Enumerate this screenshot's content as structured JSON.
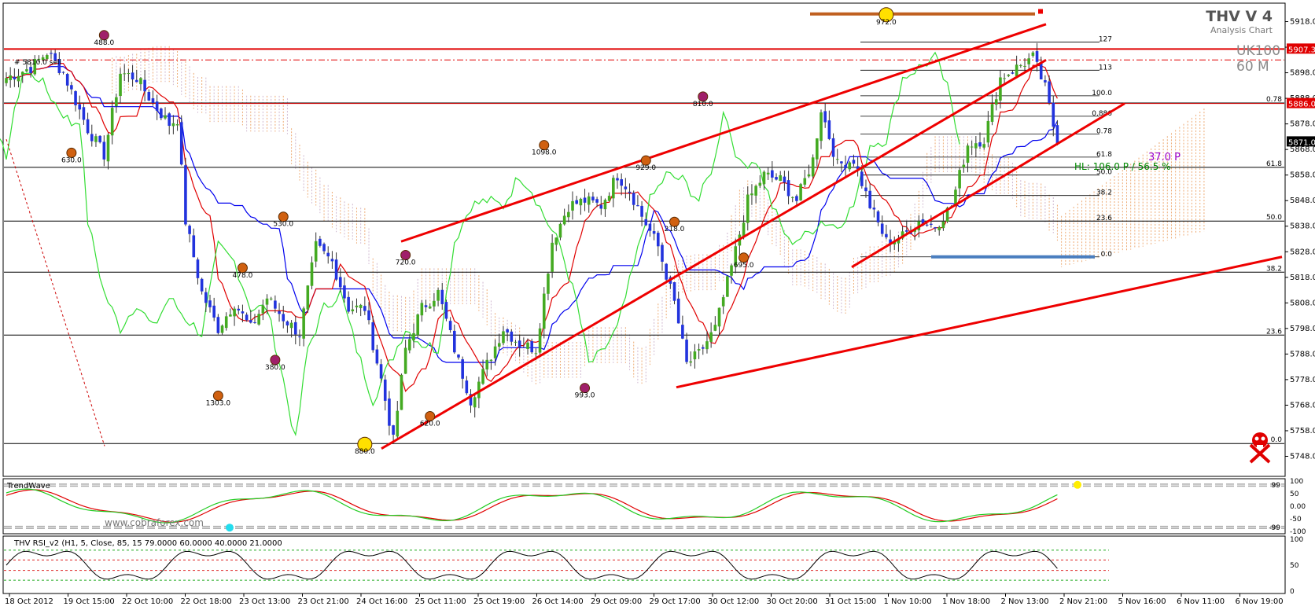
{
  "header": {
    "title": "THV V 4",
    "subtitle": "Analysis Chart",
    "symbol": "UK100",
    "timeframe": "60 M",
    "top_left_label": "# 5810.0 sell"
  },
  "chart_data": [
    {
      "type": "candlestick",
      "name": "main",
      "ylim": [
        5742,
        5924
      ],
      "price_ticks": [
        "5918.0",
        "5908.0",
        "5898.0",
        "5888.0",
        "5878.0",
        "5868.0",
        "5858.0",
        "5848.0",
        "5838.0",
        "5828.0",
        "5818.0",
        "5808.0",
        "5798.0",
        "5788.0",
        "5778.0",
        "5768.0",
        "5758.0",
        "5748.0"
      ],
      "price_tags": [
        {
          "label": "5907.3",
          "price": 5907.3,
          "color": "#e00000"
        },
        {
          "label": "5886.0",
          "price": 5886.0,
          "color": "#e00000"
        },
        {
          "label": "5871.0",
          "price": 5871.0,
          "color": "#000000"
        }
      ],
      "x_labels": [
        "18 Oct 2012",
        "19 Oct 15:00",
        "22 Oct 10:00",
        "22 Oct 18:00",
        "23 Oct 13:00",
        "23 Oct 21:00",
        "24 Oct 16:00",
        "25 Oct 11:00",
        "25 Oct 19:00",
        "26 Oct 14:00",
        "29 Oct 09:00",
        "29 Oct 17:00",
        "30 Oct 12:00",
        "30 Oct 20:00",
        "31 Oct 15:00",
        "1 Nov 10:00",
        "1 Nov 18:00",
        "2 Nov 13:00",
        "2 Nov 21:00",
        "5 Nov 16:00",
        "6 Nov 11:00",
        "6 Nov 19:00"
      ],
      "close_anchors": [
        [
          0,
          5896
        ],
        [
          6,
          5900
        ],
        [
          10,
          5906
        ],
        [
          14,
          5898
        ],
        [
          20,
          5876
        ],
        [
          24,
          5866
        ],
        [
          28,
          5898
        ],
        [
          32,
          5896
        ],
        [
          36,
          5886
        ],
        [
          40,
          5878
        ],
        [
          42,
          5880
        ],
        [
          44,
          5840
        ],
        [
          48,
          5812
        ],
        [
          52,
          5798
        ],
        [
          56,
          5808
        ],
        [
          60,
          5798
        ],
        [
          64,
          5810
        ],
        [
          68,
          5802
        ],
        [
          72,
          5796
        ],
        [
          76,
          5830
        ],
        [
          80,
          5824
        ],
        [
          84,
          5806
        ],
        [
          88,
          5806
        ],
        [
          92,
          5778
        ],
        [
          95,
          5754
        ],
        [
          98,
          5790
        ],
        [
          102,
          5806
        ],
        [
          106,
          5812
        ],
        [
          110,
          5790
        ],
        [
          114,
          5770
        ],
        [
          118,
          5784
        ],
        [
          122,
          5798
        ],
        [
          126,
          5792
        ],
        [
          130,
          5790
        ],
        [
          134,
          5832
        ],
        [
          138,
          5846
        ],
        [
          142,
          5848
        ],
        [
          146,
          5846
        ],
        [
          150,
          5858
        ],
        [
          153,
          5852
        ],
        [
          156,
          5842
        ],
        [
          160,
          5830
        ],
        [
          164,
          5808
        ],
        [
          167,
          5784
        ],
        [
          170,
          5788
        ],
        [
          174,
          5798
        ],
        [
          178,
          5822
        ],
        [
          182,
          5848
        ],
        [
          186,
          5858
        ],
        [
          190,
          5856
        ],
        [
          194,
          5848
        ],
        [
          198,
          5864
        ],
        [
          200,
          5884
        ],
        [
          204,
          5862
        ],
        [
          208,
          5864
        ],
        [
          212,
          5846
        ],
        [
          216,
          5832
        ],
        [
          220,
          5834
        ],
        [
          224,
          5840
        ],
        [
          228,
          5838
        ],
        [
          232,
          5846
        ],
        [
          236,
          5870
        ],
        [
          240,
          5872
        ],
        [
          244,
          5896
        ],
        [
          248,
          5900
        ],
        [
          252,
          5904
        ],
        [
          255,
          5892
        ],
        [
          258,
          5870
        ]
      ],
      "levels": [
        {
          "label": "0.78",
          "price": 5886.2
        },
        {
          "label": "61.8",
          "price": 5861.0
        },
        {
          "label": "50.0",
          "price": 5840.0
        },
        {
          "label": "38.2",
          "price": 5820.0
        },
        {
          "label": "23.6",
          "price": 5795.4
        },
        {
          "label": "0.0",
          "price": 5753.0
        }
      ],
      "fib_labels": [
        {
          "label": "127",
          "price": 5910.0
        },
        {
          "label": "113",
          "price": 5899.0
        },
        {
          "label": "100.0",
          "price": 5889.0
        },
        {
          "label": "0.886",
          "price": 5881.0
        },
        {
          "label": "0.78",
          "price": 5874.0
        },
        {
          "label": "61.8",
          "price": 5865.0
        },
        {
          "label": "50.0",
          "price": 5858.0
        },
        {
          "label": "38.2",
          "price": 5850.0
        },
        {
          "label": "23.6",
          "price": 5840.0
        },
        {
          "label": "0.0",
          "price": 5826.0
        }
      ],
      "swing_labels": [
        {
          "label": "630.0",
          "bar": 16,
          "price": 5863
        },
        {
          "label": "488.0",
          "bar": 24,
          "price": 5909
        },
        {
          "label": "1303.0",
          "bar": 52,
          "price": 5768
        },
        {
          "label": "478.0",
          "bar": 58,
          "price": 5818
        },
        {
          "label": "380.0",
          "bar": 66,
          "price": 5782
        },
        {
          "label": "530.0",
          "bar": 68,
          "price": 5838
        },
        {
          "label": "880.0",
          "bar": 88,
          "price": 5749
        },
        {
          "label": "720.0",
          "bar": 98,
          "price": 5823
        },
        {
          "label": "620.0",
          "bar": 104,
          "price": 5760
        },
        {
          "label": "1098.0",
          "bar": 132,
          "price": 5866
        },
        {
          "label": "993.0",
          "bar": 142,
          "price": 5771
        },
        {
          "label": "929.0",
          "bar": 157,
          "price": 5860
        },
        {
          "label": "218.0",
          "bar": 164,
          "price": 5836
        },
        {
          "label": "810.0",
          "bar": 171,
          "price": 5885
        },
        {
          "label": "695.0",
          "bar": 181,
          "price": 5822
        },
        {
          "label": "972.0",
          "bar": 216,
          "price": 5917
        }
      ],
      "notes": [
        {
          "text": "37.0 P",
          "color": "#9900cc"
        },
        {
          "text": "HL: 106.0 P / 56.5 %",
          "color": "#008800"
        }
      ]
    },
    {
      "type": "line",
      "name": "TrendWave",
      "title": "TrendWave",
      "ylim": [
        -100,
        100
      ],
      "ticks": [
        "100",
        "50",
        "0.00",
        "-50",
        "-100"
      ],
      "level_labels": [
        "99",
        "-99"
      ],
      "watermark": "www.cobraforex.com"
    },
    {
      "type": "line",
      "name": "THV RSI_v2",
      "title": "THV RSI_v2  (H1,  5,  Close,  85,  15 79.0000 60.0000 40.0000 21.0000",
      "ylim": [
        0,
        100
      ],
      "ticks": [
        "100",
        "50",
        "0"
      ],
      "levels": [
        79,
        60,
        40,
        21
      ]
    }
  ]
}
